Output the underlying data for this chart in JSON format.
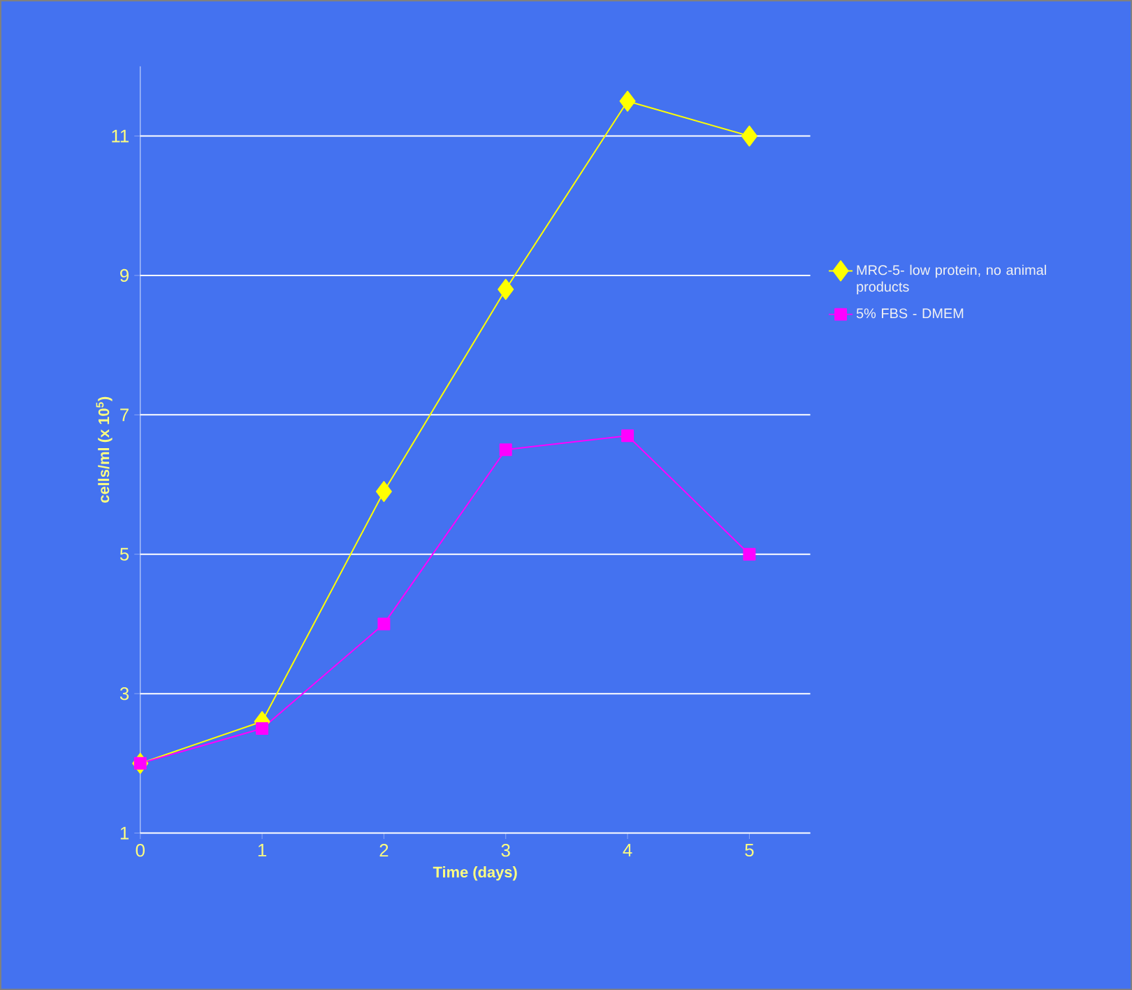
{
  "chart_data": {
    "type": "line",
    "xlabel": "Time (days)",
    "ylabel": "cells/ml (x 10$^{5}$)",
    "x": [
      0,
      1,
      2,
      3,
      4,
      5
    ],
    "series": [
      {
        "name": "MRC-5- low protein, no animal products",
        "color": "#ffff00",
        "marker": "diamond",
        "values": [
          2.0,
          2.6,
          5.9,
          8.8,
          11.5,
          11.0
        ]
      },
      {
        "name": "5% FBS - DMEM",
        "color": "#ff00ff",
        "marker": "square",
        "values": [
          2.0,
          2.5,
          4.0,
          6.5,
          6.7,
          5.0
        ]
      }
    ],
    "xlim": [
      0,
      5.5
    ],
    "ylim": [
      1,
      12
    ],
    "xticks": [
      0,
      1,
      2,
      3,
      4,
      5
    ],
    "yticks": [
      1,
      3,
      5,
      7,
      9,
      11
    ],
    "grid": "y",
    "legend": "right",
    "line_style": "solid"
  }
}
